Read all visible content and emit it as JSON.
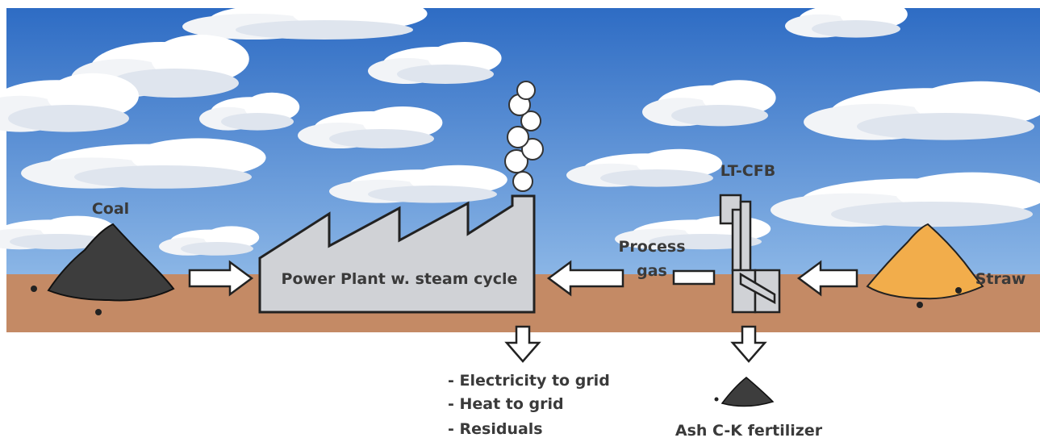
{
  "nodes": [
    {
      "label": "Coal"
    },
    {
      "label": "Power Plant w. steam cycle"
    },
    {
      "label": [
        "Process",
        "gas"
      ]
    },
    {
      "label": "LT-CFB"
    },
    {
      "label": "Straw"
    }
  ],
  "outputs": [
    "- Electricity to grid",
    "- Heat to grid",
    "- Residuals"
  ],
  "byproduct": "Ash C-K fertilizer"
}
